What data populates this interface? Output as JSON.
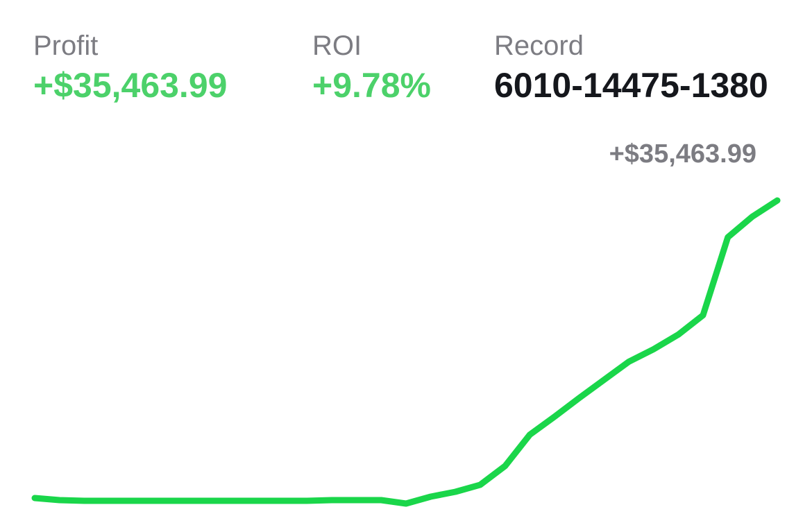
{
  "stats": [
    {
      "label": "Profit",
      "value": "+$35,463.99"
    },
    {
      "label": "ROI",
      "value": "+9.78%"
    },
    {
      "label": "Record",
      "value": "6010-14475-1380"
    }
  ],
  "chart_data": {
    "type": "line",
    "values": [
      165,
      -82,
      -165,
      -165,
      -165,
      -165,
      -165,
      -165,
      -165,
      -165,
      -165,
      -165,
      -82,
      -82,
      -82,
      -495,
      330,
      907,
      1732,
      3958,
      7670,
      9814,
      12041,
      14185,
      16330,
      17814,
      19546,
      21855,
      31091,
      33566,
      35463.99
    ],
    "value_labels": [
      null,
      null,
      null,
      null,
      null,
      null,
      null,
      null,
      null,
      null,
      null,
      null,
      null,
      null,
      null,
      null,
      null,
      null,
      null,
      null,
      null,
      null,
      null,
      null,
      null,
      null,
      null,
      null,
      null,
      null,
      "+$35,463.99"
    ],
    "color": "#1ad64a"
  }
}
